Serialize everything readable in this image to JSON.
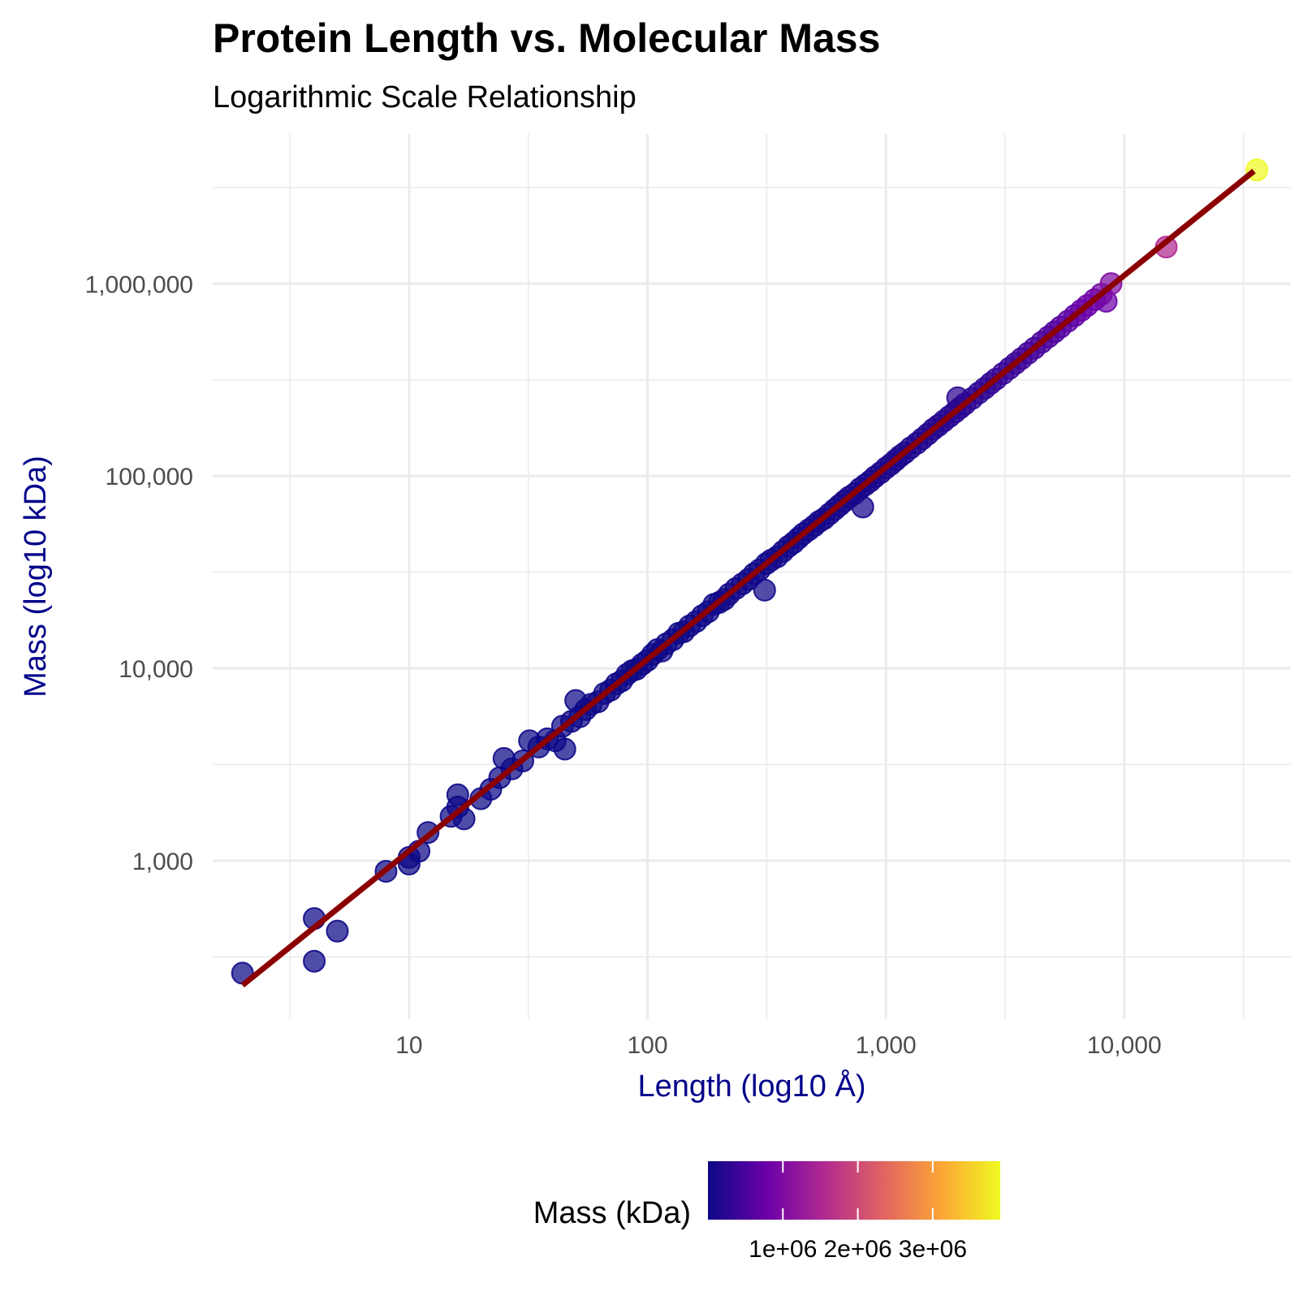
{
  "chart_data": {
    "type": "scatter",
    "title": "Protein Length vs. Molecular Mass",
    "subtitle": "Logarithmic Scale Relationship",
    "xlabel": "Length (log10 Å)",
    "ylabel": "Mass (log10 kDa)",
    "x_scale": "log10",
    "y_scale": "log10",
    "xlim": [
      1.5,
      50000
    ],
    "ylim": [
      150,
      6000000
    ],
    "x_ticks": [
      10,
      100,
      1000,
      10000
    ],
    "x_tick_labels": [
      "10",
      "100",
      "1,000",
      "10,000"
    ],
    "y_ticks": [
      1000,
      10000,
      100000,
      1000000
    ],
    "y_tick_labels": [
      "1,000",
      "10,000",
      "100,000",
      "1,000,000"
    ],
    "grid": true,
    "points": [
      {
        "x": 2,
        "y": 260
      },
      {
        "x": 4,
        "y": 500
      },
      {
        "x": 4,
        "y": 300
      },
      {
        "x": 5,
        "y": 430
      },
      {
        "x": 8,
        "y": 880
      },
      {
        "x": 10,
        "y": 960
      },
      {
        "x": 10,
        "y": 1040
      },
      {
        "x": 11,
        "y": 1120
      },
      {
        "x": 12,
        "y": 1400
      },
      {
        "x": 15,
        "y": 1700
      },
      {
        "x": 16,
        "y": 1900
      },
      {
        "x": 16,
        "y": 2200
      },
      {
        "x": 17,
        "y": 1650
      },
      {
        "x": 20,
        "y": 2100
      },
      {
        "x": 22,
        "y": 2350
      },
      {
        "x": 24,
        "y": 2700
      },
      {
        "x": 25,
        "y": 3400
      },
      {
        "x": 27,
        "y": 3000
      },
      {
        "x": 30,
        "y": 3300
      },
      {
        "x": 32,
        "y": 4200
      },
      {
        "x": 35,
        "y": 3900
      },
      {
        "x": 38,
        "y": 4300
      },
      {
        "x": 41,
        "y": 4200
      },
      {
        "x": 44,
        "y": 5000
      },
      {
        "x": 45,
        "y": 3800
      },
      {
        "x": 48,
        "y": 5300
      },
      {
        "x": 50,
        "y": 6800
      },
      {
        "x": 52,
        "y": 5600
      },
      {
        "x": 55,
        "y": 6100
      },
      {
        "x": 58,
        "y": 6500
      },
      {
        "x": 62,
        "y": 6700
      },
      {
        "x": 66,
        "y": 7400
      },
      {
        "x": 70,
        "y": 7700
      },
      {
        "x": 74,
        "y": 8300
      },
      {
        "x": 78,
        "y": 8600
      },
      {
        "x": 82,
        "y": 9300
      },
      {
        "x": 86,
        "y": 9700
      },
      {
        "x": 90,
        "y": 9900
      },
      {
        "x": 95,
        "y": 10500
      },
      {
        "x": 100,
        "y": 11000
      },
      {
        "x": 105,
        "y": 11800
      },
      {
        "x": 110,
        "y": 12500
      },
      {
        "x": 115,
        "y": 12300
      },
      {
        "x": 120,
        "y": 13400
      },
      {
        "x": 128,
        "y": 14100
      },
      {
        "x": 135,
        "y": 15200
      },
      {
        "x": 142,
        "y": 15500
      },
      {
        "x": 150,
        "y": 16600
      },
      {
        "x": 160,
        "y": 17500
      },
      {
        "x": 170,
        "y": 18800
      },
      {
        "x": 180,
        "y": 19700
      },
      {
        "x": 190,
        "y": 21500
      },
      {
        "x": 200,
        "y": 22000
      },
      {
        "x": 210,
        "y": 22800
      },
      {
        "x": 220,
        "y": 24300
      },
      {
        "x": 235,
        "y": 26000
      },
      {
        "x": 250,
        "y": 27500
      },
      {
        "x": 265,
        "y": 29000
      },
      {
        "x": 280,
        "y": 31000
      },
      {
        "x": 295,
        "y": 32500
      },
      {
        "x": 310,
        "y": 25500
      },
      {
        "x": 315,
        "y": 35000
      },
      {
        "x": 330,
        "y": 36500
      },
      {
        "x": 350,
        "y": 38000
      },
      {
        "x": 370,
        "y": 40500
      },
      {
        "x": 390,
        "y": 43000
      },
      {
        "x": 410,
        "y": 45000
      },
      {
        "x": 430,
        "y": 47500
      },
      {
        "x": 450,
        "y": 50000
      },
      {
        "x": 475,
        "y": 52500
      },
      {
        "x": 500,
        "y": 55000
      },
      {
        "x": 525,
        "y": 58000
      },
      {
        "x": 550,
        "y": 60000
      },
      {
        "x": 580,
        "y": 63500
      },
      {
        "x": 610,
        "y": 67000
      },
      {
        "x": 640,
        "y": 70500
      },
      {
        "x": 670,
        "y": 74000
      },
      {
        "x": 700,
        "y": 77500
      },
      {
        "x": 740,
        "y": 81000
      },
      {
        "x": 780,
        "y": 86000
      },
      {
        "x": 800,
        "y": 69000
      },
      {
        "x": 820,
        "y": 90000
      },
      {
        "x": 860,
        "y": 94000
      },
      {
        "x": 900,
        "y": 99000
      },
      {
        "x": 950,
        "y": 104000
      },
      {
        "x": 1000,
        "y": 110000
      },
      {
        "x": 1050,
        "y": 115000
      },
      {
        "x": 1100,
        "y": 121000
      },
      {
        "x": 1150,
        "y": 127000
      },
      {
        "x": 1200,
        "y": 132000
      },
      {
        "x": 1270,
        "y": 140000
      },
      {
        "x": 1350,
        "y": 148000
      },
      {
        "x": 1420,
        "y": 156000
      },
      {
        "x": 1500,
        "y": 165000
      },
      {
        "x": 1580,
        "y": 175000
      },
      {
        "x": 1660,
        "y": 183000
      },
      {
        "x": 1750,
        "y": 193000
      },
      {
        "x": 1850,
        "y": 204000
      },
      {
        "x": 1950,
        "y": 215000
      },
      {
        "x": 2000,
        "y": 255000
      },
      {
        "x": 2050,
        "y": 226000
      },
      {
        "x": 2150,
        "y": 237000
      },
      {
        "x": 2300,
        "y": 253000
      },
      {
        "x": 2450,
        "y": 270000
      },
      {
        "x": 2600,
        "y": 286000
      },
      {
        "x": 2750,
        "y": 303000
      },
      {
        "x": 2900,
        "y": 319000
      },
      {
        "x": 3100,
        "y": 341000
      },
      {
        "x": 3300,
        "y": 363000
      },
      {
        "x": 3500,
        "y": 385000
      },
      {
        "x": 3700,
        "y": 407000
      },
      {
        "x": 3950,
        "y": 435000
      },
      {
        "x": 4200,
        "y": 462000
      },
      {
        "x": 4500,
        "y": 495000
      },
      {
        "x": 4800,
        "y": 528000
      },
      {
        "x": 5100,
        "y": 561000
      },
      {
        "x": 5400,
        "y": 594000
      },
      {
        "x": 5800,
        "y": 638000
      },
      {
        "x": 6200,
        "y": 682000
      },
      {
        "x": 6600,
        "y": 726000
      },
      {
        "x": 7000,
        "y": 770000
      },
      {
        "x": 7500,
        "y": 825000
      },
      {
        "x": 8000,
        "y": 880000
      },
      {
        "x": 8400,
        "y": 810000
      },
      {
        "x": 8800,
        "y": 1000000
      },
      {
        "x": 15000,
        "y": 1550000
      },
      {
        "x": 36000,
        "y": 3900000
      }
    ],
    "trendline": {
      "x": [
        2,
        35000
      ],
      "y": [
        225,
        3850000
      ]
    },
    "colorbar": {
      "title": "Mass (kDa)",
      "min": 260,
      "max": 3900000,
      "ticks": [
        1000000,
        2000000,
        3000000
      ],
      "tick_labels": [
        "1e+06",
        "2e+06",
        "3e+06"
      ],
      "stops": [
        "#0d0887",
        "#6a00a8",
        "#b12a90",
        "#e16462",
        "#fca636",
        "#f0f921"
      ]
    },
    "legend_position": "bottom",
    "colors": {
      "trendline": "#8b0000",
      "axis_title": "#00008b",
      "point_stroke": "#1a1a8f",
      "grid": "#ebebeb"
    }
  }
}
